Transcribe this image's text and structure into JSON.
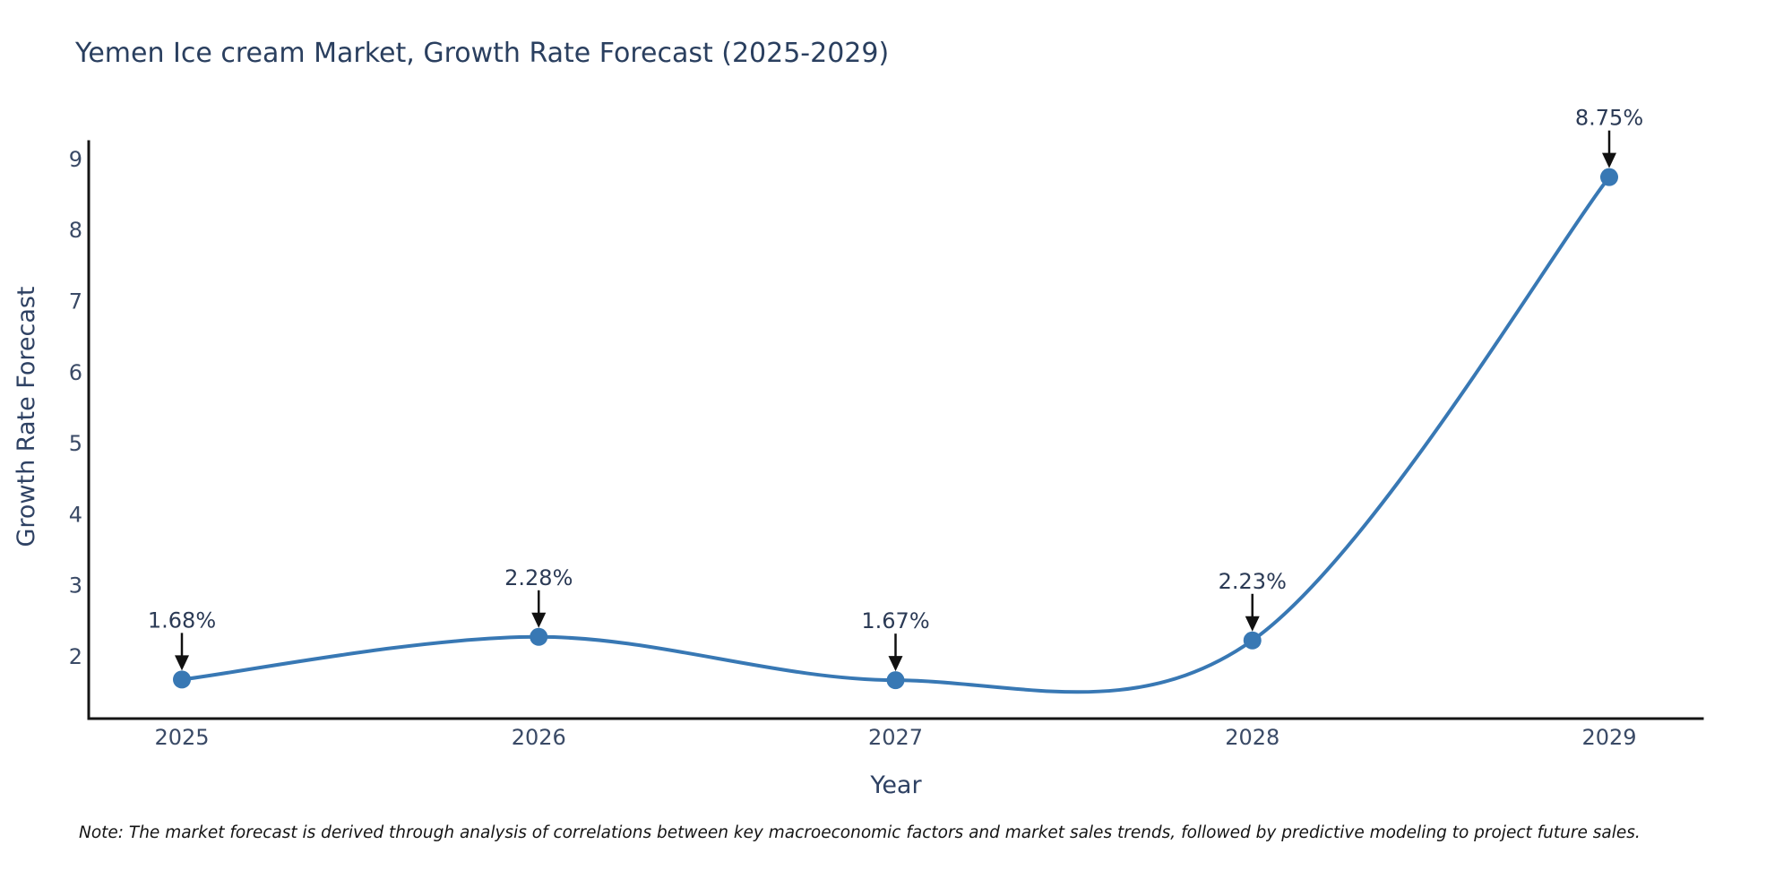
{
  "title": "Yemen Ice cream Market, Growth Rate Forecast (2025-2029)",
  "note": "Note: The market forecast is derived through analysis of correlations between key macroeconomic factors and market sales trends, followed by predictive modeling to project future sales.",
  "chart_data": {
    "type": "line",
    "title": "Yemen Ice cream Market, Growth Rate Forecast (2025-2029)",
    "x": [
      2025,
      2026,
      2027,
      2028,
      2029
    ],
    "values": [
      1.68,
      2.28,
      1.67,
      2.23,
      8.75
    ],
    "point_labels": [
      "1.68%",
      "2.28%",
      "1.67%",
      "2.23%",
      "8.75%"
    ],
    "xlabel": "Year",
    "ylabel": "Growth Rate Forecast",
    "ylim": [
      1.13,
      9.25
    ],
    "yticks": [
      2,
      3,
      4,
      5,
      6,
      7,
      8,
      9
    ],
    "grid": false,
    "smooth": true,
    "legend_position": "none",
    "line_color": "#3878b4",
    "marker_color": "#3878b4",
    "axis_color": "#151515",
    "tick_color": "#3a4a66",
    "annotation_text_color": "#2b3a55",
    "annotation_arrow_color": "#111111"
  }
}
